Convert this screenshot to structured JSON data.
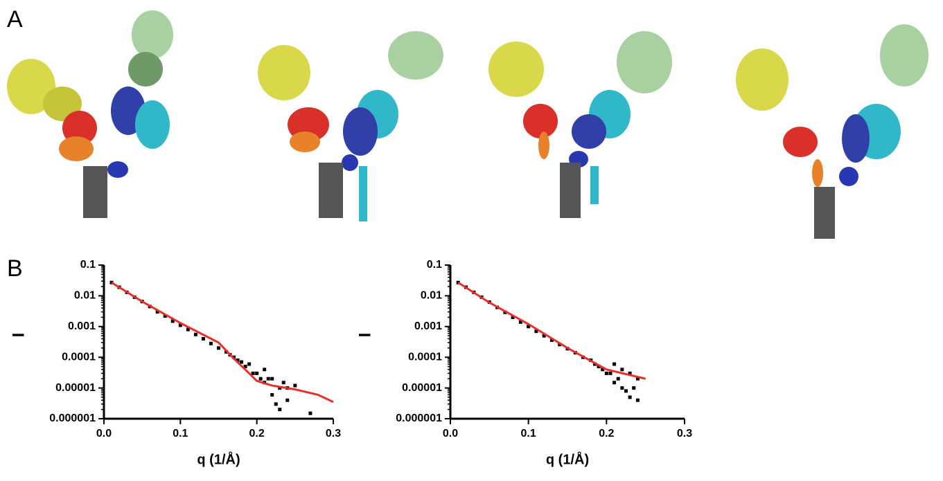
{
  "panel_labels": [
    "A",
    "B"
  ],
  "chart_data": [
    {
      "type": "scatter",
      "x_label": "q (1/Å)",
      "y_label": "I",
      "log_y": true,
      "xlim": [
        0,
        0.3
      ],
      "xticks": [
        {
          "value": 0,
          "label": "0.0"
        },
        0.1,
        0.2,
        0.3
      ],
      "ylim": [
        1e-06,
        0.1
      ],
      "yticks": [
        0.1,
        0.01,
        0.001,
        0.0001,
        1e-05,
        1e-06
      ],
      "series": [
        {
          "kind": "points",
          "color": "#000000",
          "x": [
            0.01,
            0.02,
            0.03,
            0.04,
            0.05,
            0.06,
            0.07,
            0.08,
            0.09,
            0.1,
            0.11,
            0.12,
            0.13,
            0.14,
            0.15,
            0.16,
            0.165,
            0.17,
            0.175,
            0.18,
            0.185,
            0.19,
            0.195,
            0.2,
            0.205,
            0.21,
            0.21,
            0.215,
            0.22,
            0.22,
            0.225,
            0.23,
            0.23,
            0.235,
            0.24,
            0.24,
            0.25,
            0.27
          ],
          "values": [
            0.027,
            0.019,
            0.013,
            0.009,
            0.0065,
            0.0045,
            0.003,
            0.0022,
            0.0015,
            0.0011,
            0.0008,
            0.00055,
            0.0004,
            0.00028,
            0.0002,
            0.00015,
            0.00012,
            0.0001,
            8e-05,
            7e-05,
            5e-05,
            6e-05,
            3e-05,
            3e-05,
            2e-05,
            4e-05,
            1.5e-05,
            2e-05,
            6e-06,
            2e-05,
            3e-06,
            1e-05,
            2e-06,
            1.5e-05,
            4e-06,
            1e-05,
            1.2e-05,
            1.5e-06
          ]
        },
        {
          "kind": "line",
          "color": "#e8302a",
          "x": [
            0.01,
            0.05,
            0.1,
            0.15,
            0.17,
            0.19,
            0.2,
            0.22,
            0.25,
            0.28,
            0.3
          ],
          "values": [
            0.027,
            0.0065,
            0.0013,
            0.0003,
            9e-05,
            3e-05,
            1.7e-05,
            1.2e-05,
            9e-06,
            6e-06,
            3.5e-06
          ]
        }
      ]
    },
    {
      "type": "scatter",
      "x_label": "q (1/Å)",
      "y_label": "I",
      "log_y": true,
      "xlim": [
        0,
        0.3
      ],
      "xticks": [
        {
          "value": 0,
          "label": "0.0"
        },
        0.1,
        0.2,
        0.3
      ],
      "ylim": [
        1e-06,
        0.1
      ],
      "yticks": [
        0.1,
        0.01,
        0.001,
        0.0001,
        1e-05,
        1e-06
      ],
      "series": [
        {
          "kind": "points",
          "color": "#000000",
          "x": [
            0.01,
            0.02,
            0.03,
            0.04,
            0.05,
            0.06,
            0.07,
            0.08,
            0.09,
            0.1,
            0.11,
            0.12,
            0.13,
            0.14,
            0.15,
            0.16,
            0.17,
            0.18,
            0.185,
            0.19,
            0.195,
            0.2,
            0.205,
            0.21,
            0.21,
            0.215,
            0.22,
            0.22,
            0.225,
            0.23,
            0.23,
            0.235,
            0.24,
            0.24
          ],
          "values": [
            0.027,
            0.019,
            0.013,
            0.009,
            0.0062,
            0.0042,
            0.0029,
            0.002,
            0.0014,
            0.001,
            0.0007,
            0.0005,
            0.00036,
            0.00026,
            0.00019,
            0.00014,
            0.0001,
            8e-05,
            6e-05,
            5e-05,
            4e-05,
            3e-05,
            3e-05,
            6e-05,
            1.5e-05,
            2e-05,
            1e-05,
            4e-05,
            8e-06,
            3e-05,
            5e-06,
            1e-05,
            4e-06,
            2e-05
          ]
        },
        {
          "kind": "line",
          "color": "#e8302a",
          "x": [
            0.01,
            0.05,
            0.1,
            0.15,
            0.2,
            0.25
          ],
          "values": [
            0.027,
            0.006,
            0.0012,
            0.0002,
            4e-05,
            2e-05
          ]
        }
      ]
    }
  ]
}
